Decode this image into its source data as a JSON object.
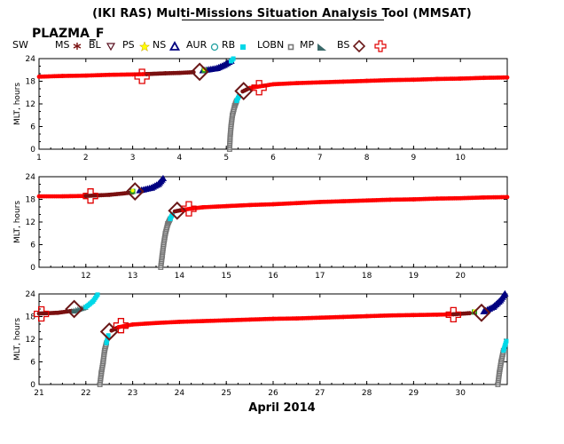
{
  "title": "(IKI RAS) Multi-Missions Situation Analysis Tool (MMSAT)",
  "mission": "PLAZMA_F",
  "xlabel": "April 2014",
  "colors": {
    "SW": "#ff0000",
    "MS": "#7a1010",
    "BL": "#5a1020",
    "PS": "#ffff00",
    "NS": "#000080",
    "AUR": "#00d8e8",
    "RB": "#00d8e8",
    "LOBN": "#777777",
    "MP": "#3b6a6a",
    "BS": "#e00000",
    "Border": "#6a1818"
  },
  "legend": [
    {
      "label": "SW",
      "icon": "none"
    },
    {
      "label": "MS",
      "icon": "asterisk-icon"
    },
    {
      "label": "BL",
      "icon": "triangle-down-icon"
    },
    {
      "label": "PS",
      "icon": "star-icon"
    },
    {
      "label": "NS",
      "icon": "triangle-up-icon"
    },
    {
      "label": "AUR",
      "icon": "circle-icon"
    },
    {
      "label": "RB",
      "icon": "square-icon"
    },
    {
      "label": "LOBN",
      "icon": "hollow-square-icon"
    },
    {
      "label": "MP",
      "icon": "wedge-icon"
    },
    {
      "label": "BS",
      "icon": "diamond-icon"
    },
    {
      "label": "",
      "icon": "cross-icon"
    }
  ],
  "chart_data": [
    {
      "type": "scatter",
      "panel": 1,
      "ylabel": "MLT, hours",
      "xlim": [
        1,
        11
      ],
      "ylim": [
        0,
        24
      ],
      "xticks": [
        1,
        2,
        3,
        4,
        5,
        6,
        7,
        8,
        9,
        10
      ],
      "yticks": [
        0,
        6,
        12,
        18,
        24
      ],
      "bow_shock": [
        {
          "x": 3.2,
          "y": 19.3
        },
        {
          "x": 5.7,
          "y": 16.3
        }
      ],
      "magnetopause": [
        {
          "x": 4.43,
          "y": 20.5
        },
        {
          "x": 5.37,
          "y": 15.4
        }
      ],
      "ps_points": [
        {
          "x": 4.53,
          "y": 20.9
        }
      ],
      "series": [
        {
          "region": "SW",
          "points": [
            [
              1.0,
              19.2
            ],
            [
              1.5,
              19.4
            ],
            [
              2.0,
              19.5
            ],
            [
              2.5,
              19.7
            ],
            [
              3.0,
              19.8
            ],
            [
              3.3,
              19.9
            ]
          ]
        },
        {
          "region": "MS",
          "points": [
            [
              3.3,
              19.9
            ],
            [
              3.7,
              20.1
            ],
            [
              4.0,
              20.2
            ],
            [
              4.3,
              20.4
            ]
          ]
        },
        {
          "region": "NS",
          "points": [
            [
              4.5,
              20.8
            ],
            [
              4.8,
              21.4
            ],
            [
              4.95,
              22.2
            ],
            [
              5.1,
              23.3
            ]
          ]
        },
        {
          "region": "AUR",
          "points": [
            [
              5.1,
              23.3
            ],
            [
              5.15,
              24.0
            ]
          ]
        },
        {
          "region": "LOBN",
          "points": [
            [
              5.07,
              0.0
            ],
            [
              5.08,
              3.0
            ],
            [
              5.1,
              6.0
            ],
            [
              5.13,
              9.0
            ],
            [
              5.18,
              11.5
            ],
            [
              5.22,
              12.8
            ]
          ]
        },
        {
          "region": "RB",
          "points": [
            [
              5.22,
              12.8
            ],
            [
              5.27,
              14.0
            ]
          ]
        },
        {
          "region": "MS",
          "points": [
            [
              5.35,
              15.3
            ],
            [
              5.5,
              16.2
            ]
          ]
        },
        {
          "region": "SW",
          "points": [
            [
              5.5,
              16.2
            ],
            [
              5.8,
              16.8
            ],
            [
              6.0,
              17.2
            ],
            [
              6.5,
              17.5
            ],
            [
              7.0,
              17.7
            ],
            [
              7.5,
              17.9
            ],
            [
              8.0,
              18.1
            ],
            [
              8.5,
              18.3
            ],
            [
              9.0,
              18.4
            ],
            [
              9.5,
              18.6
            ],
            [
              10.0,
              18.7
            ],
            [
              10.5,
              18.9
            ],
            [
              11.0,
              19.0
            ]
          ]
        }
      ]
    },
    {
      "type": "scatter",
      "panel": 2,
      "ylabel": "MLT, hours",
      "xlim": [
        11,
        21
      ],
      "ylim": [
        0,
        24
      ],
      "xticks": [
        12,
        13,
        14,
        15,
        16,
        17,
        18,
        19,
        20
      ],
      "yticks": [
        0,
        6,
        12,
        18,
        24
      ],
      "bow_shock": [
        {
          "x": 12.1,
          "y": 18.9
        },
        {
          "x": 14.2,
          "y": 15.5
        }
      ],
      "magnetopause": [
        {
          "x": 13.05,
          "y": 20.1
        },
        {
          "x": 13.95,
          "y": 15.0
        }
      ],
      "ps_points": [
        {
          "x": 13.0,
          "y": 20.1
        }
      ],
      "series": [
        {
          "region": "SW",
          "points": [
            [
              11.0,
              18.8
            ],
            [
              11.5,
              18.8
            ],
            [
              12.0,
              18.9
            ]
          ]
        },
        {
          "region": "MS",
          "points": [
            [
              12.0,
              18.9
            ],
            [
              12.5,
              19.2
            ],
            [
              13.0,
              19.8
            ]
          ]
        },
        {
          "region": "NS",
          "points": [
            [
              13.15,
              20.3
            ],
            [
              13.4,
              21.0
            ],
            [
              13.55,
              22.0
            ],
            [
              13.65,
              23.5
            ]
          ]
        },
        {
          "region": "LOBN",
          "points": [
            [
              13.6,
              0.0
            ],
            [
              13.63,
              3.0
            ],
            [
              13.66,
              6.0
            ],
            [
              13.7,
              9.0
            ],
            [
              13.75,
              11.5
            ],
            [
              13.8,
              12.8
            ]
          ]
        },
        {
          "region": "RB",
          "points": [
            [
              13.8,
              12.8
            ],
            [
              13.85,
              14.0
            ]
          ]
        },
        {
          "region": "MS",
          "points": [
            [
              13.9,
              14.8
            ],
            [
              14.1,
              15.3
            ]
          ]
        },
        {
          "region": "SW",
          "points": [
            [
              14.1,
              15.3
            ],
            [
              14.5,
              15.9
            ],
            [
              15.0,
              16.2
            ],
            [
              15.5,
              16.5
            ],
            [
              16.0,
              16.7
            ],
            [
              16.5,
              17.0
            ],
            [
              17.0,
              17.3
            ],
            [
              17.5,
              17.5
            ],
            [
              18.0,
              17.7
            ],
            [
              18.5,
              17.9
            ],
            [
              19.0,
              18.0
            ],
            [
              19.5,
              18.2
            ],
            [
              20.0,
              18.3
            ],
            [
              20.5,
              18.5
            ],
            [
              21.0,
              18.6
            ]
          ]
        }
      ]
    },
    {
      "type": "scatter",
      "panel": 3,
      "ylabel": "MLT, hours",
      "xlim": [
        21,
        31
      ],
      "ylim": [
        0,
        24
      ],
      "xticks": [
        21,
        22,
        23,
        24,
        25,
        26,
        27,
        28,
        29,
        30
      ],
      "yticks": [
        0,
        6,
        12,
        18,
        24
      ],
      "bow_shock": [
        {
          "x": 21.05,
          "y": 18.7
        },
        {
          "x": 22.75,
          "y": 15.6
        },
        {
          "x": 29.85,
          "y": 18.5
        }
      ],
      "magnetopause": [
        {
          "x": 21.75,
          "y": 20.0
        },
        {
          "x": 22.5,
          "y": 14.0
        },
        {
          "x": 30.45,
          "y": 19.0
        }
      ],
      "ps_points": [
        {
          "x": 30.3,
          "y": 19.2
        }
      ],
      "series": [
        {
          "region": "MS",
          "points": [
            [
              21.0,
              18.8
            ],
            [
              21.4,
              19.0
            ],
            [
              21.7,
              19.5
            ]
          ]
        },
        {
          "region": "MP",
          "points": [
            [
              21.75,
              19.5
            ],
            [
              22.0,
              20.5
            ]
          ]
        },
        {
          "region": "AUR",
          "points": [
            [
              22.0,
              20.5
            ],
            [
              22.15,
              22.0
            ],
            [
              22.25,
              23.8
            ]
          ]
        },
        {
          "region": "LOBN",
          "points": [
            [
              22.3,
              0.0
            ],
            [
              22.33,
              3.0
            ],
            [
              22.37,
              6.0
            ],
            [
              22.4,
              9.0
            ],
            [
              22.44,
              11.0
            ]
          ]
        },
        {
          "region": "RB",
          "points": [
            [
              22.44,
              11.0
            ],
            [
              22.48,
              13.0
            ]
          ]
        },
        {
          "region": "MS",
          "points": [
            [
              22.55,
              14.3
            ],
            [
              22.7,
              15.2
            ]
          ]
        },
        {
          "region": "SW",
          "points": [
            [
              22.7,
              15.2
            ],
            [
              23.0,
              15.9
            ],
            [
              23.5,
              16.3
            ],
            [
              24.0,
              16.6
            ],
            [
              24.5,
              16.8
            ],
            [
              25.0,
              17.0
            ],
            [
              25.5,
              17.2
            ],
            [
              26.0,
              17.4
            ],
            [
              26.5,
              17.5
            ],
            [
              27.0,
              17.7
            ],
            [
              27.5,
              17.9
            ],
            [
              28.0,
              18.1
            ],
            [
              28.5,
              18.3
            ],
            [
              29.0,
              18.4
            ],
            [
              29.5,
              18.5
            ],
            [
              29.85,
              18.6
            ]
          ]
        },
        {
          "region": "MS",
          "points": [
            [
              29.85,
              18.6
            ],
            [
              30.2,
              18.9
            ]
          ]
        },
        {
          "region": "NS",
          "points": [
            [
              30.5,
              19.3
            ],
            [
              30.7,
              20.5
            ],
            [
              30.85,
              22.2
            ],
            [
              30.95,
              24.0
            ]
          ]
        },
        {
          "region": "LOBN",
          "points": [
            [
              30.8,
              0.0
            ],
            [
              30.83,
              3.0
            ],
            [
              30.87,
              6.0
            ],
            [
              30.92,
              9.0
            ]
          ]
        },
        {
          "region": "AUR",
          "points": [
            [
              30.92,
              9.0
            ],
            [
              30.98,
              11.5
            ]
          ]
        }
      ]
    }
  ]
}
